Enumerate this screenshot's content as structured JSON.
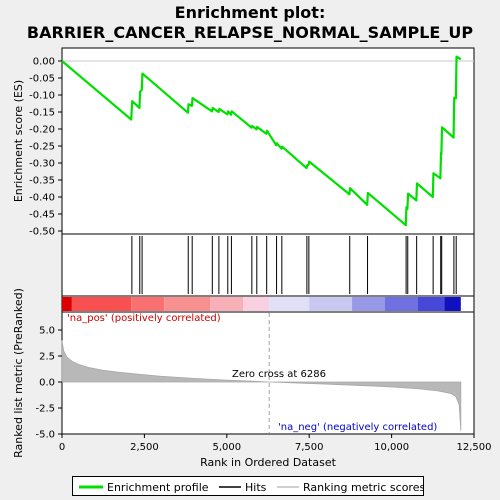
{
  "chart_data": {
    "type": "line",
    "title": "Enrichment plot:\nBARRIER_CANCER_RELAPSE_NORMAL_SAMPLE_UP",
    "title_lines": [
      "Enrichment plot:",
      "BARRIER_CANCER_RELAPSE_NORMAL_SAMPLE_UP"
    ],
    "top_panel": {
      "ylabel": "Enrichment score (ES)",
      "ylim": [
        -0.5,
        0.04
      ],
      "yticks": [
        "0.00",
        "-0.05",
        "-0.10",
        "-0.15",
        "-0.20",
        "-0.25",
        "-0.30",
        "-0.35",
        "-0.40",
        "-0.45",
        "-0.50"
      ],
      "ytick_values": [
        0.0,
        -0.05,
        -0.1,
        -0.15,
        -0.2,
        -0.25,
        -0.3,
        -0.35,
        -0.4,
        -0.45,
        -0.5
      ],
      "series": [
        {
          "name": "Enrichment profile",
          "color": "#00e000",
          "x": [
            0,
            2100,
            2130,
            2350,
            2370,
            2420,
            2440,
            3820,
            3840,
            3940,
            3960,
            4550,
            4570,
            4750,
            4770,
            5020,
            5040,
            5130,
            5150,
            5750,
            5770,
            5900,
            5920,
            6200,
            6220,
            6500,
            6520,
            6660,
            6680,
            7420,
            7440,
            7480,
            7500,
            8720,
            8740,
            9260,
            9280,
            10430,
            10450,
            10480,
            10500,
            10750,
            10770,
            11250,
            11270,
            11480,
            11500,
            11510,
            11530,
            11880,
            11900,
            11950,
            11970,
            12100
          ],
          "y": [
            0.0,
            -0.172,
            -0.118,
            -0.138,
            -0.09,
            -0.085,
            -0.037,
            -0.152,
            -0.127,
            -0.132,
            -0.109,
            -0.148,
            -0.138,
            -0.15,
            -0.141,
            -0.157,
            -0.148,
            -0.158,
            -0.148,
            -0.196,
            -0.191,
            -0.201,
            -0.194,
            -0.214,
            -0.205,
            -0.248,
            -0.242,
            -0.258,
            -0.252,
            -0.315,
            -0.307,
            -0.305,
            -0.296,
            -0.392,
            -0.374,
            -0.423,
            -0.388,
            -0.483,
            -0.43,
            -0.435,
            -0.39,
            -0.41,
            -0.36,
            -0.4,
            -0.33,
            -0.345,
            -0.27,
            -0.275,
            -0.195,
            -0.225,
            -0.108,
            -0.11,
            0.013,
            0.005
          ]
        }
      ]
    },
    "hits_panel": {
      "hit_positions": [
        2120,
        2360,
        2430,
        3830,
        3950,
        4560,
        4760,
        5030,
        5140,
        5760,
        5910,
        6210,
        6510,
        6670,
        7430,
        7490,
        8730,
        9270,
        10440,
        10490,
        10760,
        11260,
        11490,
        11520,
        11890,
        11960
      ]
    },
    "heatbar": {
      "segments": [
        {
          "from": 0,
          "to": 300,
          "color": "#dd0000"
        },
        {
          "from": 300,
          "to": 2100,
          "color": "#f85050"
        },
        {
          "from": 2100,
          "to": 3100,
          "color": "#f87070"
        },
        {
          "from": 3100,
          "to": 4500,
          "color": "#f89090"
        },
        {
          "from": 4500,
          "to": 5500,
          "color": "#f8b0b8"
        },
        {
          "from": 5500,
          "to": 6286,
          "color": "#f8d0e0"
        },
        {
          "from": 6286,
          "to": 7500,
          "color": "#e0e0f8"
        },
        {
          "from": 7500,
          "to": 8800,
          "color": "#c8c8f0"
        },
        {
          "from": 8800,
          "to": 9800,
          "color": "#9898e8"
        },
        {
          "from": 9800,
          "to": 10800,
          "color": "#7070e0"
        },
        {
          "from": 10800,
          "to": 11600,
          "color": "#4848d8"
        },
        {
          "from": 11600,
          "to": 12100,
          "color": "#1010c0"
        }
      ]
    },
    "bottom_panel": {
      "ylabel": "Ranked list metric (PreRanked)",
      "xlabel": "Rank in Ordered Dataset",
      "ylim": [
        -5.0,
        6.5
      ],
      "yticks": [
        "5.0",
        "2.5",
        "0.0",
        "-2.5",
        "-5.0"
      ],
      "ytick_values": [
        5.0,
        2.5,
        0.0,
        -2.5,
        -5.0
      ],
      "xlim": [
        0,
        12500
      ],
      "xticks": [
        "0",
        "2,500",
        "5,000",
        "7,500",
        "10,000",
        "12,500"
      ],
      "xtick_values": [
        0,
        2500,
        5000,
        7500,
        10000,
        12500
      ],
      "metric_curve": {
        "x": [
          0,
          50,
          150,
          300,
          500,
          800,
          1200,
          1700,
          2300,
          3000,
          4000,
          5000,
          6000,
          6286,
          7000,
          8000,
          9000,
          10000,
          10800,
          11400,
          11800,
          11950,
          12050,
          12100
        ],
        "y": [
          4.0,
          3.0,
          2.4,
          2.0,
          1.7,
          1.4,
          1.15,
          0.95,
          0.75,
          0.55,
          0.35,
          0.18,
          0.05,
          0.0,
          -0.08,
          -0.2,
          -0.33,
          -0.48,
          -0.65,
          -0.85,
          -1.1,
          -1.4,
          -2.2,
          -4.7
        ]
      },
      "zero_cross_label": "Zero cross at 6286",
      "zero_cross": 6286,
      "pos_label": "'na_pos' (positively correlated)",
      "neg_label": "'na_neg' (negatively correlated)"
    },
    "legend": [
      {
        "label": "Enrichment profile",
        "color": "#00e000"
      },
      {
        "label": "Hits",
        "color": "#000000"
      },
      {
        "label": "Ranking metric scores",
        "color": "#c0c0c0"
      }
    ]
  }
}
